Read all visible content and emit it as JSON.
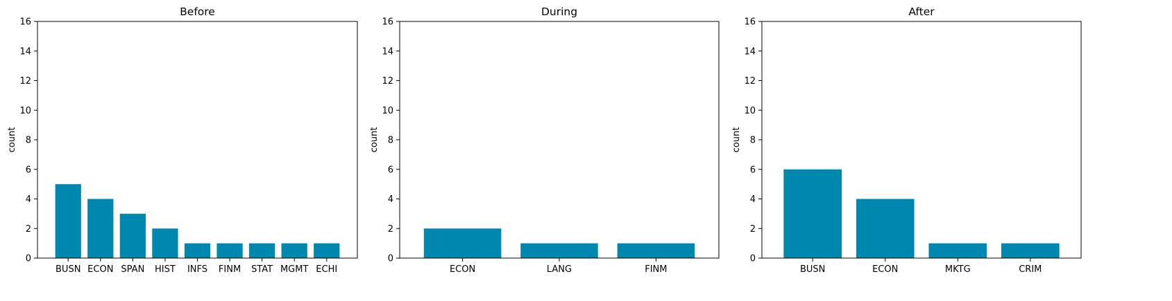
{
  "chart_data": [
    {
      "type": "bar",
      "title": "Before",
      "ylabel": "count",
      "xlabel": "",
      "ylim": [
        0,
        16
      ],
      "yticks": [
        0,
        2,
        4,
        6,
        8,
        10,
        12,
        14,
        16
      ],
      "categories": [
        "BUSN",
        "ECON",
        "SPAN",
        "HIST",
        "INFS",
        "FINM",
        "STAT",
        "MGMT",
        "ECHI"
      ],
      "values": [
        5,
        4,
        3,
        2,
        1,
        1,
        1,
        1,
        1
      ],
      "color": "#0087ae"
    },
    {
      "type": "bar",
      "title": "During",
      "ylabel": "count",
      "xlabel": "",
      "ylim": [
        0,
        16
      ],
      "yticks": [
        0,
        2,
        4,
        6,
        8,
        10,
        12,
        14,
        16
      ],
      "categories": [
        "ECON",
        "LANG",
        "FINM"
      ],
      "values": [
        2,
        1,
        1
      ],
      "color": "#0087ae"
    },
    {
      "type": "bar",
      "title": "After",
      "ylabel": "count",
      "xlabel": "",
      "ylim": [
        0,
        16
      ],
      "yticks": [
        0,
        2,
        4,
        6,
        8,
        10,
        12,
        14,
        16
      ],
      "categories": [
        "BUSN",
        "ECON",
        "MKTG",
        "CRIM"
      ],
      "values": [
        6,
        4,
        1,
        1
      ],
      "color": "#0087ae"
    }
  ]
}
